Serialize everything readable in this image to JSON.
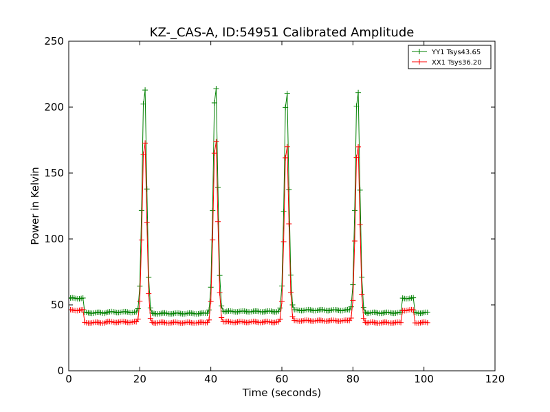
{
  "chart_data": {
    "type": "line",
    "title": "KZ-_CAS-A, ID:54951 Calibrated Amplitude",
    "xlabel": "Time (seconds)",
    "ylabel": "Power in Kelvin",
    "xlim": [
      0,
      120
    ],
    "ylim": [
      0,
      250
    ],
    "xticks": [
      0,
      20,
      40,
      60,
      80,
      100,
      120
    ],
    "yticks": [
      0,
      50,
      100,
      150,
      200,
      250
    ],
    "grid": false,
    "legend_position": "top-right",
    "marker": "+",
    "sample_interval_s": 0.5,
    "series": [
      {
        "name": "YY1 Tsys43.65",
        "color": "#008000",
        "segments": [
          {
            "from": 0,
            "to": 4,
            "level": 55
          },
          {
            "from": 4.5,
            "to": 10,
            "level": 44
          },
          {
            "from": 10,
            "to": 19.5,
            "level": 44.5
          },
          {
            "from": 23,
            "to": 38.5,
            "level": 43.5
          },
          {
            "from": 43,
            "to": 58.5,
            "level": 45
          },
          {
            "from": 63,
            "to": 78.5,
            "level": 46
          },
          {
            "from": 83,
            "to": 93.5,
            "level": 44
          },
          {
            "from": 93.5,
            "to": 97,
            "level": 55
          },
          {
            "from": 97.5,
            "to": 101,
            "level": 44
          }
        ],
        "peaks": [
          {
            "t": 21.3,
            "peak": 222,
            "base_before": 44.5,
            "base_after": 43.5
          },
          {
            "t": 41.3,
            "peak": 223,
            "base_before": 43.5,
            "base_after": 45
          },
          {
            "t": 61.3,
            "peak": 219,
            "base_before": 45,
            "base_after": 46
          },
          {
            "t": 81.3,
            "peak": 220,
            "base_before": 46,
            "base_after": 44
          }
        ]
      },
      {
        "name": "XX1 Tsys36.20",
        "color": "#ff0000",
        "segments": [
          {
            "from": 0,
            "to": 4,
            "level": 46
          },
          {
            "from": 4.5,
            "to": 10,
            "level": 36.5
          },
          {
            "from": 10,
            "to": 19.5,
            "level": 37
          },
          {
            "from": 23,
            "to": 38.5,
            "level": 36.5
          },
          {
            "from": 43,
            "to": 58.5,
            "level": 37
          },
          {
            "from": 63,
            "to": 78.5,
            "level": 38
          },
          {
            "from": 83,
            "to": 93.5,
            "level": 36.5
          },
          {
            "from": 93.5,
            "to": 97,
            "level": 46
          },
          {
            "from": 97.5,
            "to": 101,
            "level": 36.5
          }
        ],
        "peaks": [
          {
            "t": 21.3,
            "peak": 180,
            "base_before": 37,
            "base_after": 36.5
          },
          {
            "t": 41.3,
            "peak": 181,
            "base_before": 36.5,
            "base_after": 37
          },
          {
            "t": 61.3,
            "peak": 177,
            "base_before": 37,
            "base_after": 38
          },
          {
            "t": 81.3,
            "peak": 177,
            "base_before": 38,
            "base_after": 36.5
          }
        ]
      }
    ]
  }
}
